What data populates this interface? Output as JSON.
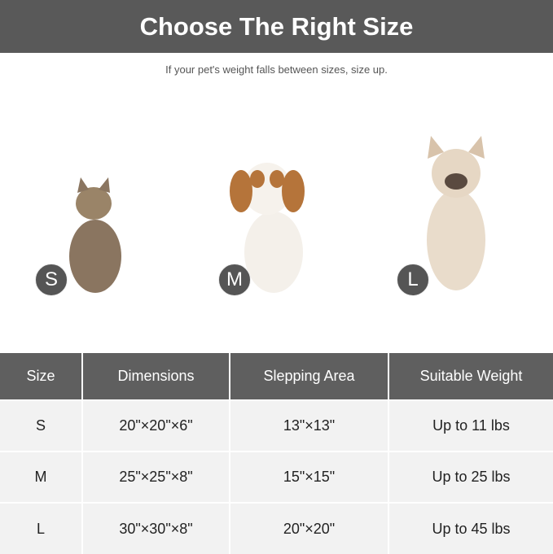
{
  "header": {
    "title": "Choose The Right Size",
    "subtitle": "If your pet's weight falls between sizes, size up."
  },
  "pets": [
    {
      "badge": "S",
      "animal": "cat"
    },
    {
      "badge": "M",
      "animal": "cavalier-spaniel"
    },
    {
      "badge": "L",
      "animal": "french-bulldog"
    }
  ],
  "table": {
    "columns": [
      "Size",
      "Dimensions",
      "Slepping Area",
      "Suitable Weight"
    ],
    "rows": [
      [
        "S",
        "20\"×20\"×6\"",
        "13\"×13\"",
        "Up to 11 lbs"
      ],
      [
        "M",
        "25\"×25\"×8\"",
        "15\"×15\"",
        "Up to 25 lbs"
      ],
      [
        "L",
        "30\"×30\"×8\"",
        "20\"×20\"",
        "Up to 45 lbs"
      ]
    ]
  },
  "colors": {
    "banner": "#595959",
    "header": "#5f5f5f",
    "row": "#f2f2f2",
    "badge": "#555555"
  }
}
